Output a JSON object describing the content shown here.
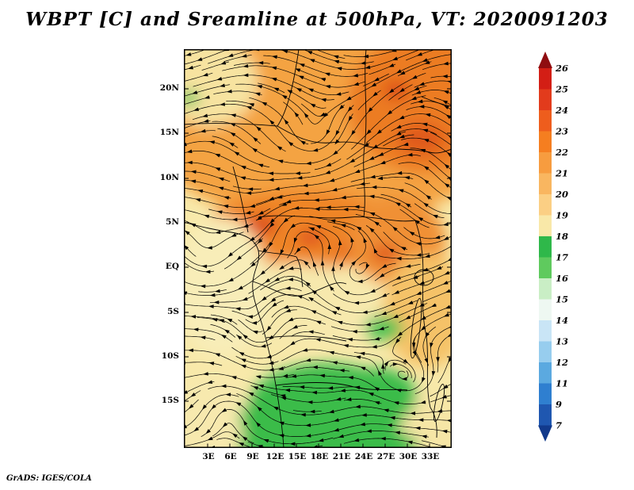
{
  "title": "WBPT [C] and Sreamline at 500hPa, VT: 2020091203",
  "footer": "GrADS: IGES/COLA",
  "map": {
    "lat_ticks": [
      "20N",
      "15N",
      "10N",
      "5N",
      "EQ",
      "5S",
      "10S",
      "15S"
    ],
    "lon_ticks": [
      "3E",
      "6E",
      "9E",
      "12E",
      "15E",
      "18E",
      "21E",
      "24E",
      "27E",
      "30E",
      "33E"
    ]
  },
  "colorbar": {
    "labels": [
      "26",
      "25",
      "24",
      "23",
      "22",
      "21",
      "20",
      "19",
      "18",
      "17",
      "16",
      "15",
      "14",
      "13",
      "12",
      "11",
      "9",
      "7"
    ],
    "colors": [
      "#d31e15",
      "#e23b1c",
      "#ee5d1d",
      "#f57e20",
      "#f79c3f",
      "#f9b660",
      "#fbcf84",
      "#f9e8a8",
      "#2fb84a",
      "#5fca5e",
      "#c9eec5",
      "#eef8f2",
      "#c9e5f6",
      "#97cdee",
      "#5ba9e0",
      "#2f7fd0",
      "#1f57b0"
    ],
    "top_color": "#8f0d10",
    "bottom_color": "#123a8c"
  },
  "chart_data": {
    "type": "heatmap",
    "plot_style": "filled contour (shaded) field with streamline overlay on a latitude-longitude map",
    "title": "WBPT [C] and Sreamline at 500hPa, VT: 2020091203",
    "variable": "Wet-bulb potential temperature (WBPT) [C]",
    "overlay": "Streamlines at 500hPa",
    "level": "500hPa",
    "valid_time": "2020091203",
    "x_axis": {
      "label": "Longitude",
      "ticks": [
        "3E",
        "6E",
        "9E",
        "12E",
        "15E",
        "18E",
        "21E",
        "24E",
        "27E",
        "30E",
        "33E"
      ],
      "range": [
        "0E",
        "36E"
      ]
    },
    "y_axis": {
      "label": "Latitude",
      "ticks": [
        "20N",
        "15N",
        "10N",
        "5N",
        "EQ",
        "5S",
        "10S",
        "15S"
      ],
      "range": [
        "20S",
        "24N"
      ]
    },
    "color_levels": [
      7,
      9,
      11,
      12,
      13,
      14,
      15,
      16,
      17,
      18,
      19,
      20,
      21,
      22,
      23,
      24,
      25,
      26
    ],
    "legend_position": "right",
    "grid": false,
    "field_summary": [
      {
        "region": "Northern band ~3N-23N",
        "wbpt_c": "20-24 (orange), deepest orange toward the northeast"
      },
      {
        "region": "Central core ~2N-7N, 7E-25E",
        "wbpt_c": "22-24 with small 23-24 red-orange spots"
      },
      {
        "region": "Equator to ~10S",
        "wbpt_c": "19-21 (pale yellow)"
      },
      {
        "region": "South ~11S-17S, 9E-27E",
        "wbpt_c": "17-18 (green)"
      },
      {
        "region": "Small patches near 20N 0-2E and ~9S 24E",
        "wbpt_c": "17-18 (green)"
      }
    ],
    "credit": "GrADS: IGES/COLA"
  },
  "accent_colors": {
    "streamline": "#000000",
    "border": "#000000",
    "background": "#ffffff"
  }
}
